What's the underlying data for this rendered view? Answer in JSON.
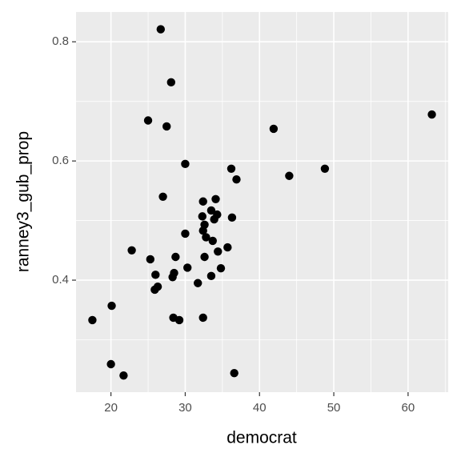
{
  "chart_data": {
    "type": "scatter",
    "xlabel": "democrat",
    "ylabel": "ranney3_gub_prop",
    "x": [
      26.7,
      28.1,
      25.0,
      27.5,
      41.9,
      63.2,
      30.0,
      36.2,
      36.9,
      44.0,
      48.8,
      27.0,
      32.4,
      34.1,
      33.5,
      32.3,
      34.3,
      33.9,
      36.3,
      32.6,
      32.4,
      30.0,
      32.8,
      33.7,
      35.7,
      34.4,
      22.8,
      25.3,
      32.6,
      28.7,
      30.3,
      34.8,
      26.0,
      28.5,
      28.3,
      33.5,
      31.7,
      26.3,
      25.9,
      20.1,
      17.5,
      28.4,
      29.2,
      32.4,
      20.0,
      21.7,
      36.6
    ],
    "values": [
      0.821,
      0.732,
      0.668,
      0.658,
      0.654,
      0.678,
      0.595,
      0.587,
      0.569,
      0.575,
      0.587,
      0.54,
      0.532,
      0.536,
      0.517,
      0.507,
      0.51,
      0.502,
      0.505,
      0.493,
      0.483,
      0.478,
      0.472,
      0.466,
      0.455,
      0.448,
      0.45,
      0.435,
      0.439,
      0.439,
      0.421,
      0.42,
      0.409,
      0.412,
      0.405,
      0.407,
      0.395,
      0.389,
      0.384,
      0.357,
      0.333,
      0.337,
      0.333,
      0.337,
      0.259,
      0.24,
      0.244
    ],
    "color": "#000000",
    "xlim": [
      15.3,
      65.4
    ],
    "xticks": [
      20,
      30,
      40,
      50,
      60
    ],
    "ylim": [
      0.212,
      0.85
    ],
    "yticks": [
      0.4,
      0.6,
      0.8
    ],
    "grid": true
  }
}
